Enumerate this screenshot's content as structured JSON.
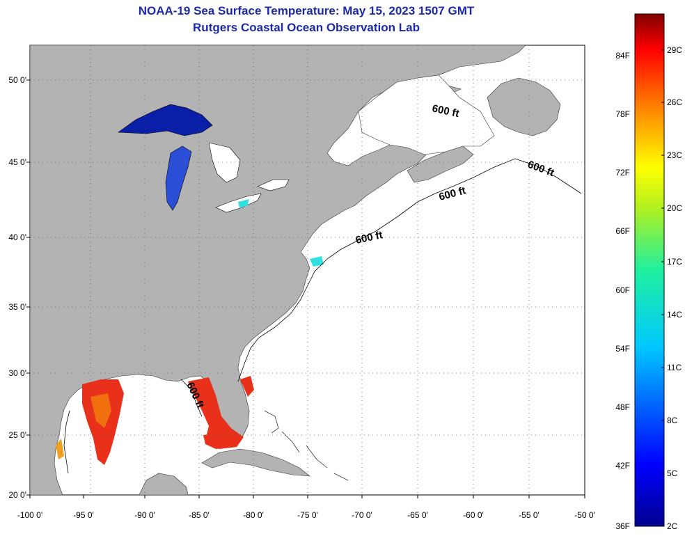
{
  "title": "NOAA-19 Sea Surface Temperature:  May 15, 2023 1507 GMT",
  "subtitle": "Rutgers Coastal Ocean Observation Lab",
  "colors": {
    "land": "#b3b3b3",
    "ocean": "#ffffff",
    "lake_cold": "#0a1fa8",
    "lake_mid": "#2a4fd6",
    "cyan_patch": "#33e0e0",
    "gulf_hot": "#e8301a",
    "gulf_warm": "#f07010"
  },
  "map": {
    "lon_ticks": [
      "-100 0'",
      "-95 0'",
      "-90 0'",
      "-85 0'",
      "-80 0'",
      "-75 0'",
      "-70 0'",
      "-65 0'",
      "-60 0'",
      "-55 0'",
      "-50 0'"
    ],
    "lat_ticks": [
      "20 0'",
      "25 0'",
      "30 0'",
      "35 0'",
      "40 0'",
      "45 0'",
      "50 0'"
    ],
    "contour_label": "600 ft",
    "contour_labels": [
      "600 ft",
      "600 ft",
      "600 ft",
      "600 ft",
      "600 ft"
    ]
  },
  "colorbar": {
    "f_labels": [
      "84F",
      "78F",
      "72F",
      "66F",
      "60F",
      "54F",
      "48F",
      "42F",
      "36F"
    ],
    "c_labels": [
      "29C",
      "26C",
      "23C",
      "20C",
      "17C",
      "14C",
      "11C",
      "8C",
      "5C",
      "2C"
    ]
  }
}
